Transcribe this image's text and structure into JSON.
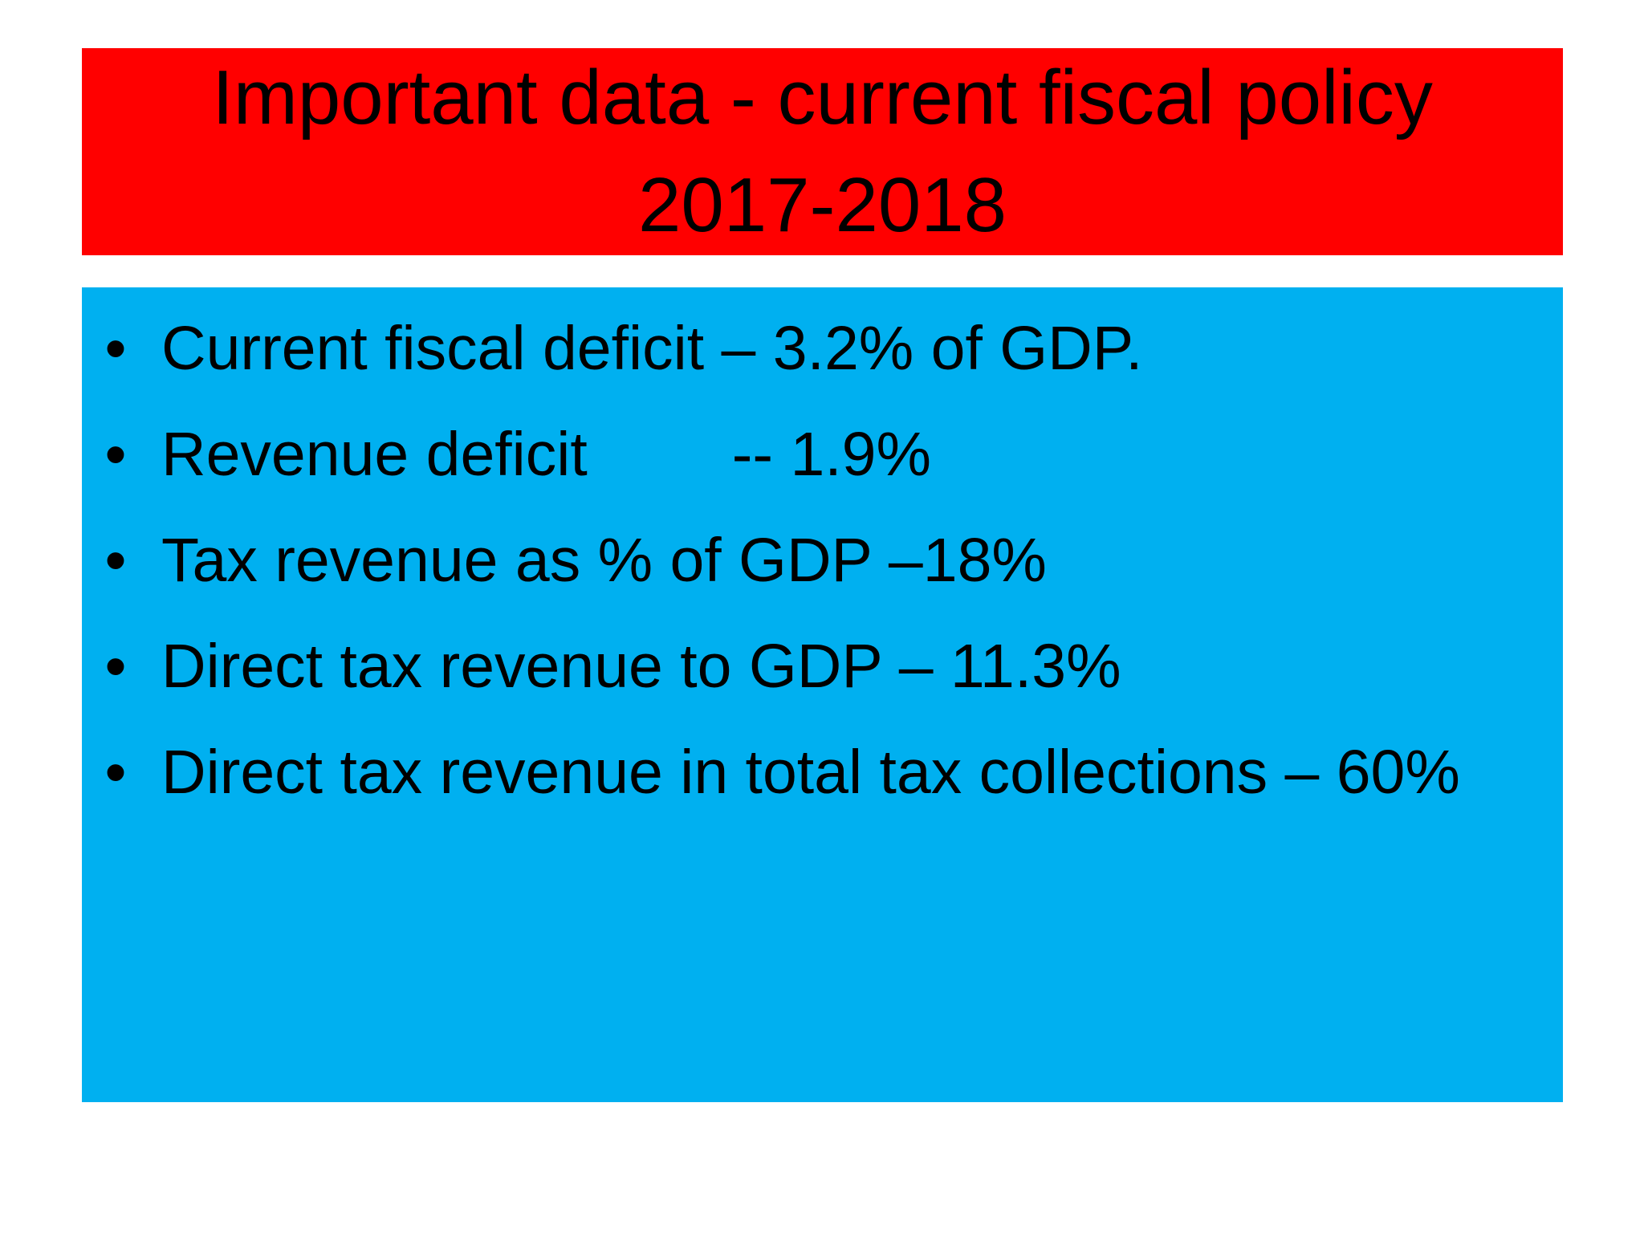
{
  "slide": {
    "title": {
      "line1": "Important data - current fiscal policy",
      "line2": "2017-2018"
    },
    "bullet_symbol": "•",
    "bullets": [
      {
        "text": "Current fiscal deficit – 3.2% of GDP."
      },
      {
        "label": "Revenue deficit",
        "value": "-- 1.9%"
      },
      {
        "text": "Tax revenue as % of GDP –18%"
      },
      {
        "text": "Direct tax revenue to GDP – 11.3%"
      },
      {
        "text": "Direct tax revenue in total tax collections – 60%"
      }
    ],
    "colors": {
      "title_background": "#ff0000",
      "content_background": "#00b0f0",
      "text": "#000000",
      "page_background": "#ffffff"
    }
  }
}
